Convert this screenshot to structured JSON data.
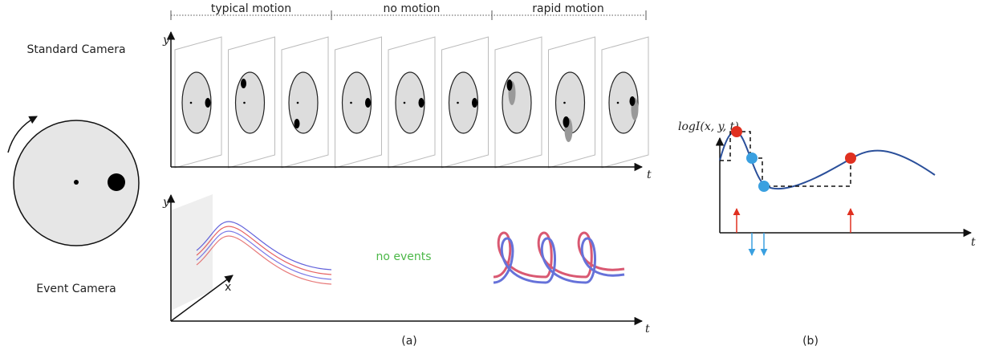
{
  "header": {
    "segments": [
      "typical motion",
      "no motion",
      "rapid motion"
    ]
  },
  "left": {
    "standard": "Standard Camera",
    "event": "Event Camera"
  },
  "frames_plot": {
    "y_label": "y",
    "t_label": "t"
  },
  "events_plot": {
    "y_label": "y",
    "x_label": "x",
    "t_label": "t",
    "note": "no events"
  },
  "captions": {
    "a": "(a)",
    "b": "(b)"
  },
  "log_plot": {
    "y_label": "logI(x, y, t)",
    "t_label": "t"
  }
}
